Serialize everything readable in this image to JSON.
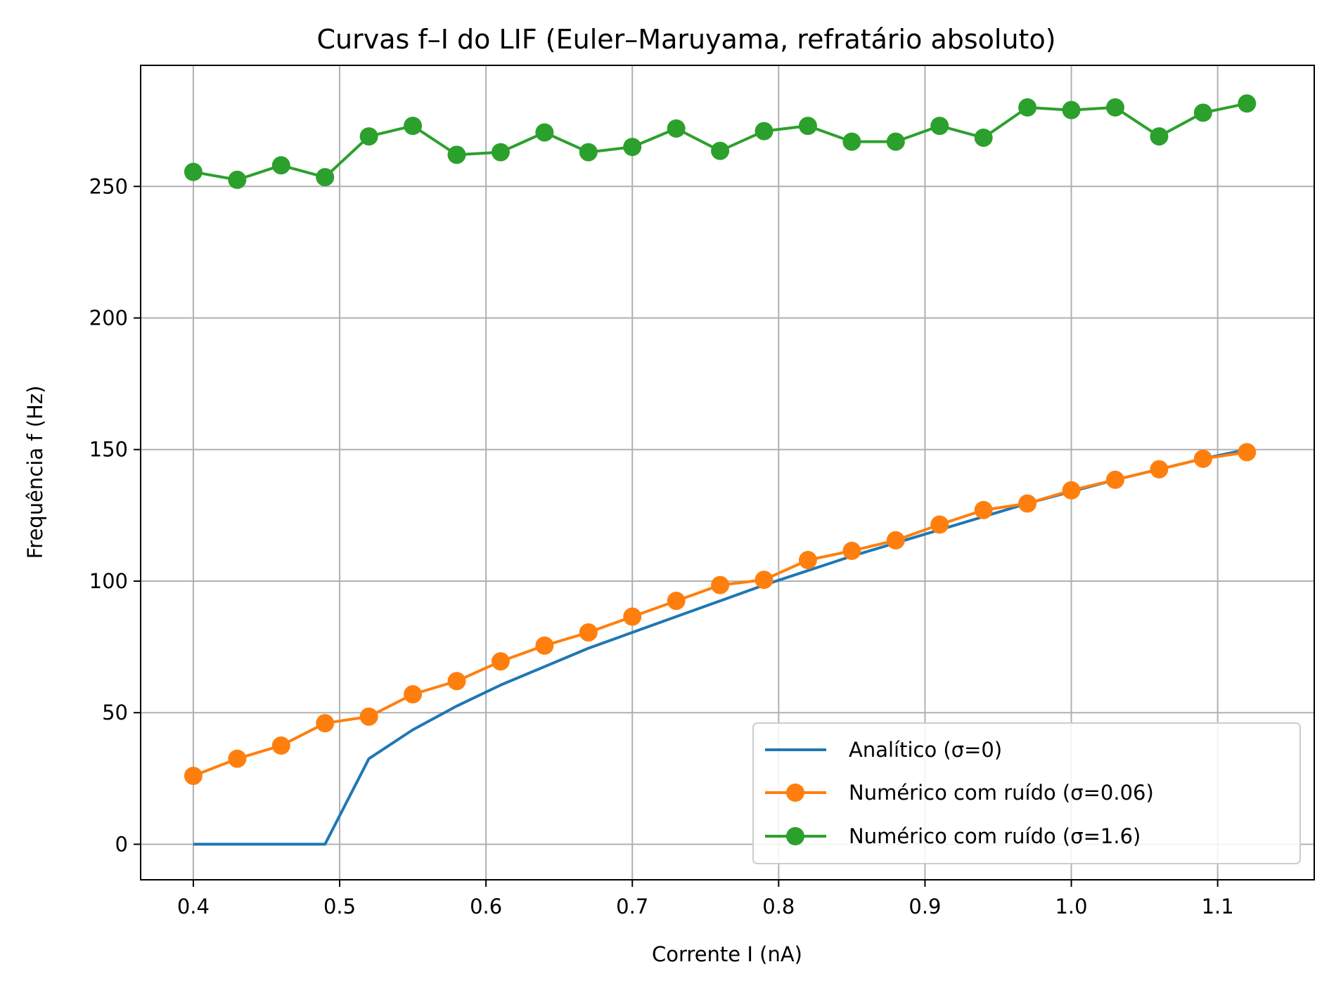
{
  "chart_data": {
    "type": "line",
    "title": "Curvas f–I do LIF (Euler–Maruyama, refratário absoluto)",
    "xlabel": "Corrente I (nA)",
    "ylabel": "Frequência f (Hz)",
    "xlim": [
      0.364,
      1.166
    ],
    "ylim": [
      -13.5,
      296
    ],
    "xticks": [
      0.4,
      0.5,
      0.6,
      0.7,
      0.8,
      0.9,
      1.0,
      1.1
    ],
    "xtick_labels": [
      "0.4",
      "0.5",
      "0.6",
      "0.7",
      "0.8",
      "0.9",
      "1.0",
      "1.1"
    ],
    "yticks": [
      0,
      50,
      100,
      150,
      200,
      250
    ],
    "ytick_labels": [
      "0",
      "50",
      "100",
      "150",
      "200",
      "250"
    ],
    "grid": true,
    "legend_position": "lower-right",
    "x": [
      0.4,
      0.43,
      0.46,
      0.49,
      0.52,
      0.55,
      0.58,
      0.61,
      0.64,
      0.67,
      0.7,
      0.73,
      0.76,
      0.79,
      0.82,
      0.85,
      0.88,
      0.91,
      0.94,
      0.97,
      1.0,
      1.03,
      1.06,
      1.09,
      1.12
    ],
    "series": [
      {
        "name": "Analítico (σ=0)",
        "color": "#1f77b4",
        "marker": false,
        "values": [
          0,
          0,
          0,
          0,
          32.5,
          43.5,
          52.5,
          60.5,
          67.5,
          74.5,
          80.5,
          86.5,
          92.5,
          98.5,
          104,
          109.5,
          114.5,
          119.5,
          124.5,
          129.5,
          134,
          138.5,
          142.5,
          146.5,
          150
        ]
      },
      {
        "name": "Numérico com ruído (σ=0.06)",
        "color": "#ff7f0e",
        "marker": true,
        "values": [
          26,
          32.5,
          37.5,
          46,
          48.5,
          57,
          62,
          69.5,
          75.5,
          80.5,
          86.5,
          92.5,
          98.5,
          100.5,
          108,
          111.5,
          115.5,
          121.5,
          127,
          129.5,
          134.5,
          138.5,
          142.5,
          146.5,
          149
        ]
      },
      {
        "name": "Numérico com ruído (σ=1.6)",
        "color": "#2ca02c",
        "marker": true,
        "values": [
          255.5,
          252.5,
          258,
          253.5,
          269,
          273,
          262,
          263,
          270.5,
          263,
          265,
          272,
          263.5,
          271,
          273,
          267,
          267,
          273,
          268.5,
          280,
          279,
          280,
          269,
          278,
          281.5
        ]
      }
    ]
  }
}
